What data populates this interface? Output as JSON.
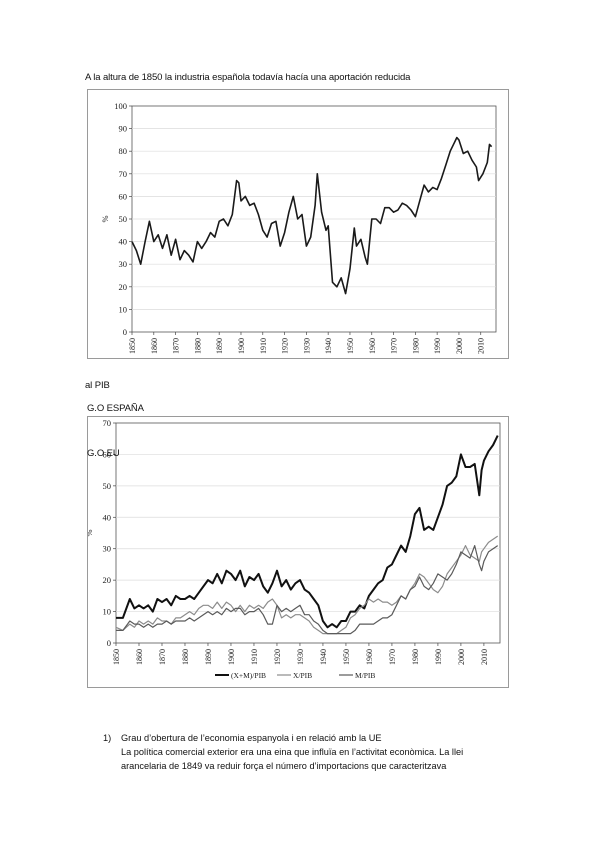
{
  "text": {
    "line1": "A la altura de 1850 la industria española todavía hacía una aportación reducida",
    "line2": "al PIB",
    "line3": "G.O ESPAÑA",
    "line4": "G.O EU",
    "item_number": "1)",
    "item_title": "Grau d’obertura de l’economia espanyola i en relació amb la UE",
    "item_body1": "La política comercial exterior era una eina que influïa en l’activitat econòmica. La llei",
    "item_body2": "arancelaria de 1849 va reduir força el número d’importacions que caracteritzava"
  },
  "chart_data": [
    {
      "type": "line",
      "title": "",
      "xlabel": "",
      "ylabel": "%",
      "xlim": [
        1850,
        2017
      ],
      "ylim": [
        0,
        100
      ],
      "yticks": [
        0,
        10,
        20,
        30,
        40,
        50,
        60,
        70,
        80,
        90,
        100
      ],
      "xticks": [
        1850,
        1860,
        1870,
        1880,
        1890,
        1900,
        1910,
        1920,
        1930,
        1940,
        1950,
        1960,
        1970,
        1980,
        1990,
        2000,
        2010
      ],
      "grid": true,
      "series": [
        {
          "color": "#1a1a1a",
          "x": [
            1850,
            1852,
            1854,
            1856,
            1858,
            1860,
            1862,
            1864,
            1866,
            1868,
            1870,
            1872,
            1874,
            1876,
            1878,
            1880,
            1882,
            1884,
            1886,
            1888,
            1890,
            1892,
            1894,
            1896,
            1898,
            1899,
            1900,
            1902,
            1904,
            1906,
            1908,
            1910,
            1912,
            1914,
            1916,
            1918,
            1920,
            1922,
            1924,
            1926,
            1928,
            1930,
            1932,
            1934,
            1935,
            1937,
            1939,
            1940,
            1942,
            1944,
            1946,
            1948,
            1950,
            1952,
            1953,
            1955,
            1957,
            1958,
            1960,
            1962,
            1964,
            1966,
            1968,
            1970,
            1972,
            1974,
            1976,
            1978,
            1980,
            1982,
            1984,
            1986,
            1988,
            1990,
            1992,
            1994,
            1996,
            1998,
            1999,
            2000,
            2002,
            2004,
            2006,
            2008,
            2009,
            2011,
            2013,
            2014,
            2015
          ],
          "y": [
            40,
            36,
            30,
            40,
            49,
            40,
            43,
            37,
            43,
            34,
            41,
            32,
            36,
            34,
            31,
            40,
            37,
            40,
            44,
            42,
            49,
            50,
            47,
            52,
            67,
            66,
            58,
            60,
            56,
            57,
            52,
            45,
            42,
            48,
            49,
            38,
            44,
            53,
            60,
            50,
            52,
            38,
            42,
            56,
            70,
            53,
            45,
            47,
            22,
            20,
            24,
            17,
            28,
            46,
            38,
            41,
            33,
            30,
            50,
            50,
            48,
            55,
            55,
            53,
            54,
            57,
            56,
            54,
            51,
            58,
            65,
            62,
            64,
            63,
            68,
            74,
            80,
            84,
            86,
            85,
            79,
            80,
            76,
            73,
            67,
            70,
            75,
            83,
            82
          ]
        }
      ]
    },
    {
      "type": "line",
      "title": "",
      "xlabel": "",
      "ylabel": "%",
      "xlim": [
        1850,
        2017
      ],
      "ylim": [
        0,
        70
      ],
      "yticks": [
        0,
        10,
        20,
        30,
        40,
        50,
        60,
        70
      ],
      "xticks": [
        1850,
        1860,
        1870,
        1880,
        1890,
        1900,
        1910,
        1920,
        1930,
        1940,
        1950,
        1960,
        1970,
        1980,
        1990,
        2000,
        2010
      ],
      "grid": true,
      "legend": "bottom",
      "series": [
        {
          "name": "(X+M)/PIB",
          "color": "#111111",
          "x": [
            1850,
            1853,
            1856,
            1858,
            1860,
            1862,
            1864,
            1866,
            1868,
            1870,
            1872,
            1874,
            1876,
            1878,
            1880,
            1882,
            1884,
            1886,
            1888,
            1890,
            1892,
            1894,
            1896,
            1898,
            1900,
            1902,
            1904,
            1906,
            1908,
            1910,
            1912,
            1914,
            1916,
            1918,
            1920,
            1922,
            1924,
            1926,
            1928,
            1930,
            1932,
            1934,
            1936,
            1938,
            1940,
            1942,
            1944,
            1946,
            1948,
            1950,
            1952,
            1954,
            1956,
            1958,
            1960,
            1962,
            1964,
            1966,
            1968,
            1970,
            1972,
            1974,
            1976,
            1978,
            1980,
            1982,
            1984,
            1986,
            1988,
            1990,
            1992,
            1994,
            1996,
            1998,
            2000,
            2002,
            2004,
            2006,
            2008,
            2009,
            2010,
            2012,
            2014,
            2016
          ],
          "y": [
            8,
            8,
            14,
            11,
            12,
            11,
            12,
            10,
            14,
            13,
            14,
            12,
            15,
            14,
            14,
            15,
            14,
            16,
            18,
            20,
            19,
            22,
            19,
            23,
            22,
            20,
            23,
            18,
            21,
            20,
            22,
            18,
            16,
            19,
            23,
            18,
            20,
            17,
            19,
            20,
            17,
            16,
            14,
            12,
            7,
            5,
            6,
            5,
            7,
            7,
            10,
            10,
            12,
            11,
            15,
            17,
            19,
            20,
            24,
            25,
            28,
            31,
            29,
            34,
            41,
            43,
            36,
            37,
            36,
            40,
            44,
            50,
            51,
            53,
            60,
            56,
            56,
            57,
            47,
            55,
            58,
            61,
            63,
            66
          ]
        },
        {
          "name": "X/PIB",
          "color": "#8c8c8c",
          "x": [
            1850,
            1853,
            1856,
            1858,
            1860,
            1862,
            1864,
            1866,
            1868,
            1870,
            1872,
            1874,
            1876,
            1878,
            1880,
            1882,
            1884,
            1886,
            1888,
            1890,
            1892,
            1894,
            1896,
            1898,
            1900,
            1902,
            1904,
            1906,
            1908,
            1910,
            1912,
            1914,
            1916,
            1918,
            1920,
            1922,
            1924,
            1926,
            1928,
            1930,
            1932,
            1934,
            1936,
            1938,
            1940,
            1942,
            1944,
            1946,
            1948,
            1950,
            1952,
            1954,
            1956,
            1958,
            1960,
            1962,
            1964,
            1966,
            1968,
            1970,
            1972,
            1974,
            1976,
            1978,
            1980,
            1982,
            1984,
            1986,
            1988,
            1990,
            1992,
            1994,
            1996,
            1998,
            2000,
            2002,
            2004,
            2006,
            2008,
            2009,
            2010,
            2012,
            2014,
            2016
          ],
          "y": [
            5,
            4,
            6,
            5,
            7,
            6,
            7,
            6,
            8,
            7,
            7,
            6,
            8,
            8,
            9,
            10,
            9,
            11,
            12,
            12,
            11,
            13,
            11,
            13,
            12,
            10,
            12,
            10,
            12,
            11,
            12,
            11,
            13,
            14,
            12,
            8,
            9,
            8,
            9,
            9,
            8,
            7,
            5,
            4,
            3,
            3,
            3,
            3,
            4,
            5,
            8,
            9,
            11,
            12,
            14,
            13,
            14,
            13,
            13,
            12,
            13,
            15,
            14,
            17,
            19,
            22,
            21,
            19,
            17,
            16,
            18,
            22,
            24,
            26,
            28,
            31,
            28,
            27,
            26,
            29,
            30,
            32,
            33,
            34
          ]
        },
        {
          "name": "M/PIB",
          "color": "#5a5a5a",
          "x": [
            1850,
            1853,
            1856,
            1858,
            1860,
            1862,
            1864,
            1866,
            1868,
            1870,
            1872,
            1874,
            1876,
            1878,
            1880,
            1882,
            1884,
            1886,
            1888,
            1890,
            1892,
            1894,
            1896,
            1898,
            1900,
            1902,
            1904,
            1906,
            1908,
            1910,
            1912,
            1914,
            1916,
            1918,
            1920,
            1922,
            1924,
            1926,
            1928,
            1930,
            1932,
            1934,
            1936,
            1938,
            1940,
            1942,
            1944,
            1946,
            1948,
            1950,
            1952,
            1954,
            1956,
            1958,
            1960,
            1962,
            1964,
            1966,
            1968,
            1970,
            1972,
            1974,
            1976,
            1978,
            1980,
            1982,
            1984,
            1986,
            1988,
            1990,
            1992,
            1994,
            1996,
            1998,
            2000,
            2002,
            2004,
            2006,
            2008,
            2009,
            2010,
            2012,
            2014,
            2016
          ],
          "y": [
            4,
            4,
            7,
            6,
            6,
            5,
            6,
            5,
            6,
            6,
            7,
            6,
            7,
            7,
            7,
            8,
            7,
            8,
            9,
            10,
            9,
            10,
            9,
            11,
            10,
            11,
            11,
            9,
            10,
            10,
            11,
            9,
            6,
            6,
            12,
            10,
            11,
            10,
            11,
            12,
            9,
            9,
            7,
            6,
            4,
            3,
            3,
            3,
            3,
            3,
            3,
            4,
            6,
            6,
            6,
            6,
            7,
            8,
            8,
            9,
            12,
            15,
            14,
            17,
            18,
            21,
            18,
            17,
            19,
            22,
            21,
            20,
            22,
            25,
            29,
            28,
            27,
            31,
            25,
            23,
            26,
            29,
            30,
            31
          ]
        }
      ]
    }
  ]
}
